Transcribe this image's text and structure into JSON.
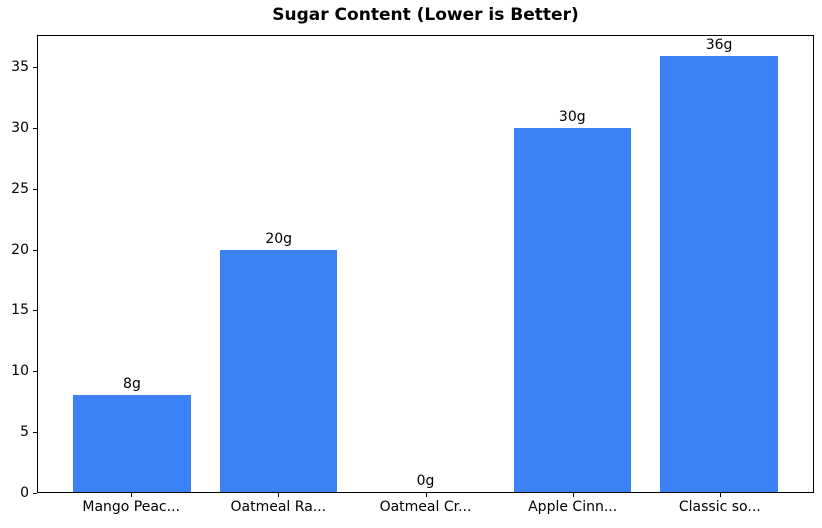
{
  "chart_data": {
    "type": "bar",
    "title": "Sugar Content (Lower is Better)",
    "categories": [
      "Mango Peac...",
      "Oatmeal Ra...",
      "Oatmeal Cr...",
      "Apple Cinn...",
      "Classic so..."
    ],
    "values": [
      8,
      20,
      0,
      30,
      36
    ],
    "bar_labels": [
      "8g",
      "20g",
      "0g",
      "30g",
      "36g"
    ],
    "bar_color": "#3b82f6",
    "xlabel": "",
    "ylabel": "",
    "ylim": [
      0,
      37.63
    ],
    "yticks": [
      0,
      5,
      10,
      15,
      20,
      25,
      30,
      35
    ],
    "xlim": [
      -0.64,
      4.64
    ],
    "bar_width": 0.8,
    "grid": false,
    "legend": "none"
  }
}
